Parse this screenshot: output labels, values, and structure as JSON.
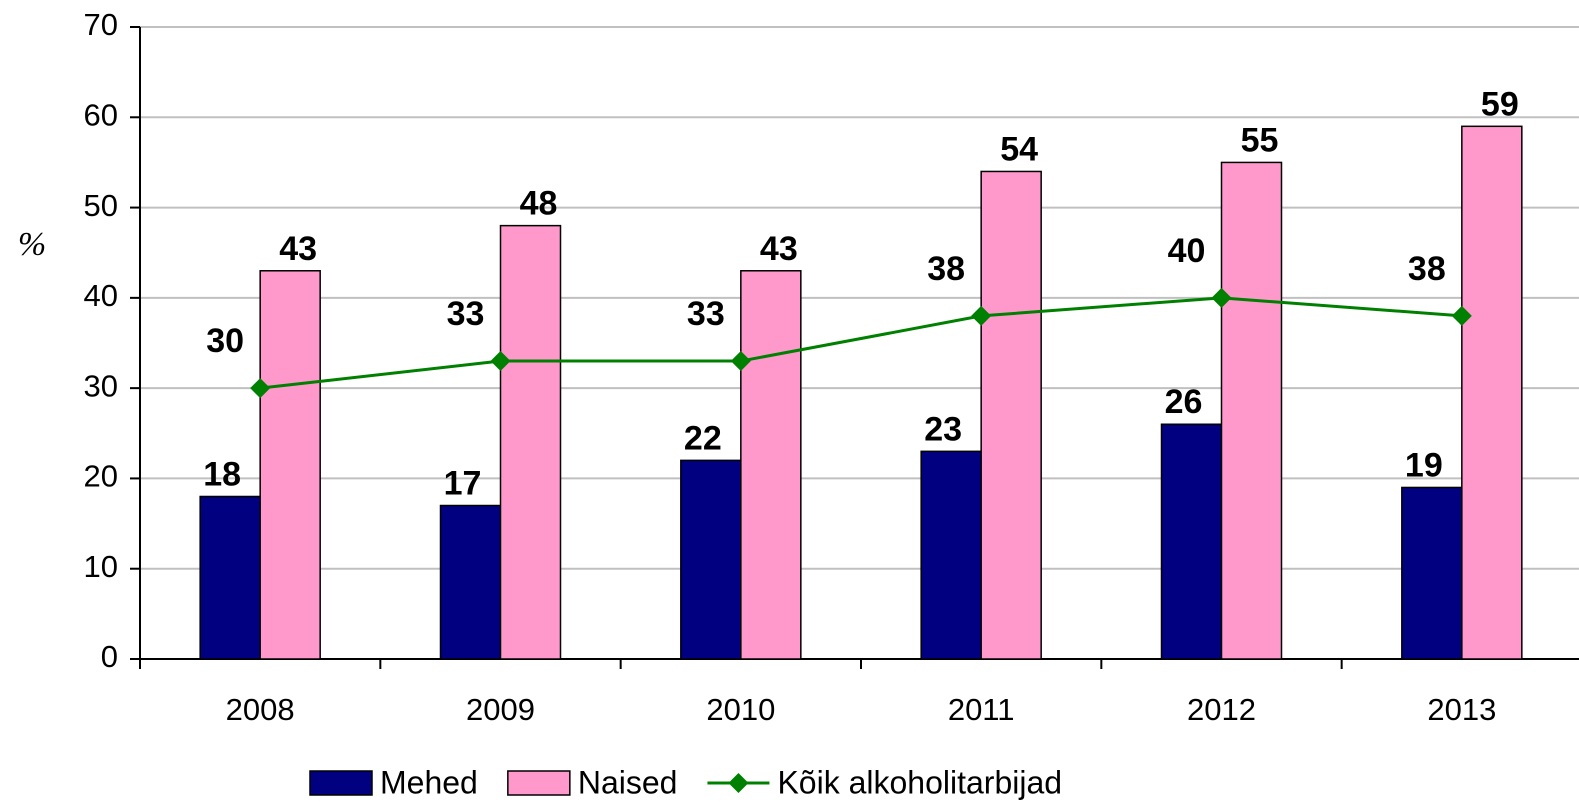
{
  "chart_data": {
    "type": "bar",
    "y_label": "%",
    "categories": [
      "2008",
      "2009",
      "2010",
      "2011",
      "2012",
      "2013"
    ],
    "series": [
      {
        "name": "Mehed",
        "color": "#000080",
        "values": [
          18,
          17,
          22,
          23,
          26,
          19
        ]
      },
      {
        "name": "Naised",
        "color": "#ff99cc",
        "values": [
          43,
          48,
          43,
          54,
          55,
          59
        ]
      },
      {
        "name": "Kõik alkoholitarbijad",
        "type": "line",
        "color": "#008000",
        "values": [
          30,
          33,
          33,
          38,
          40,
          38
        ]
      }
    ],
    "ylim": [
      0,
      70
    ],
    "yticks": [
      0,
      10,
      20,
      30,
      40,
      50,
      60,
      70
    ],
    "grid": true,
    "legend": "bottom"
  }
}
